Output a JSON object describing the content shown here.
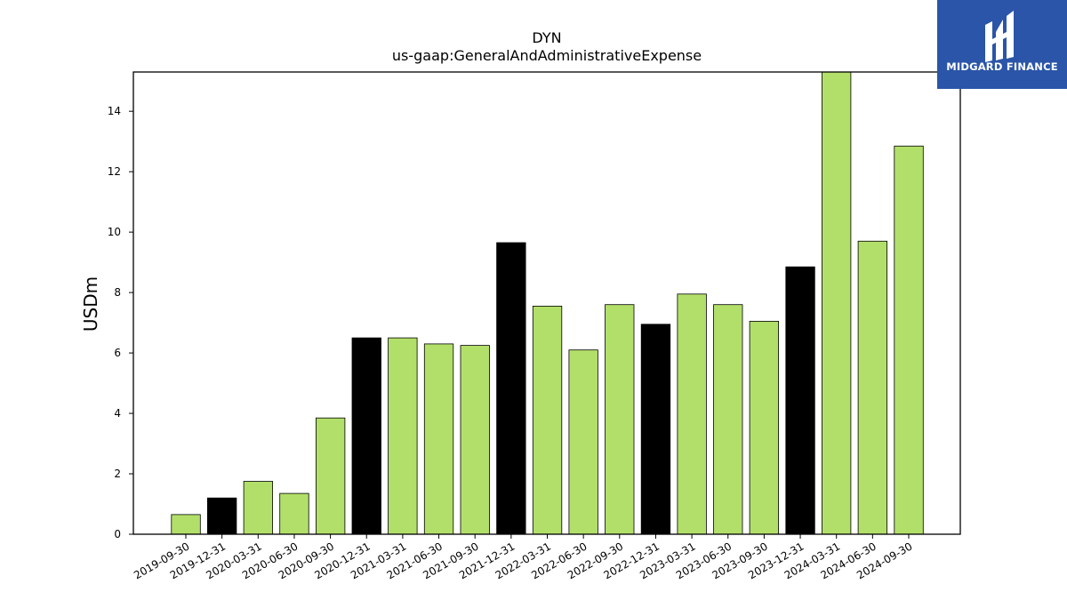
{
  "brand": {
    "name": "MIDGARD FINANCE",
    "bg_color": "#2a55a8",
    "icon": "midgard-logo-icon"
  },
  "chart_data": {
    "type": "bar",
    "title": "DYN",
    "subtitle": "us-gaap:GeneralAndAdministrativeExpense",
    "xlabel": "",
    "ylabel": "USDm",
    "ylim": [
      0,
      15.3
    ],
    "yticks": [
      0,
      2,
      4,
      6,
      8,
      10,
      12,
      14
    ],
    "grid": false,
    "categories": [
      "2019-09-30",
      "2019-12-31",
      "2020-03-31",
      "2020-06-30",
      "2020-09-30",
      "2020-12-31",
      "2021-03-31",
      "2021-06-30",
      "2021-09-30",
      "2021-12-31",
      "2022-03-31",
      "2022-06-30",
      "2022-09-30",
      "2022-12-31",
      "2023-03-31",
      "2023-06-30",
      "2023-09-30",
      "2023-12-31",
      "2024-03-31",
      "2024-06-30",
      "2024-09-30"
    ],
    "values": [
      0.65,
      1.2,
      1.75,
      1.35,
      3.85,
      6.5,
      6.5,
      6.3,
      6.25,
      9.65,
      7.55,
      6.1,
      7.6,
      6.95,
      7.95,
      7.6,
      7.05,
      8.85,
      15.4,
      9.7,
      12.85
    ],
    "quarter_color": "#b2df6a",
    "year_end_color": "#000000",
    "edge_color": "#000000"
  }
}
